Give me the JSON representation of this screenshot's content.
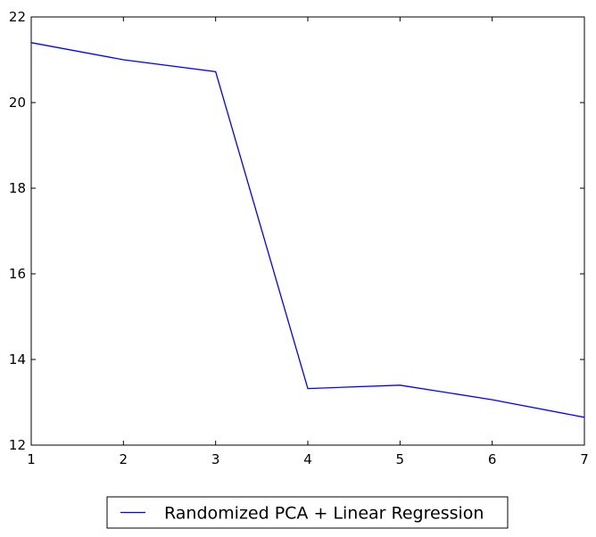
{
  "chart_data": {
    "type": "line",
    "title": "",
    "xlabel": "",
    "ylabel": "",
    "xlim": [
      1,
      7
    ],
    "ylim": [
      12,
      22
    ],
    "x_ticks": [
      1,
      2,
      3,
      4,
      5,
      6,
      7
    ],
    "y_ticks": [
      12,
      14,
      16,
      18,
      20,
      22
    ],
    "grid": false,
    "legend_position": "bottom-center, outside plot",
    "series": [
      {
        "name": "Randomized PCA + Linear Regression",
        "color": "#0000ff",
        "x": [
          1,
          2,
          3,
          4,
          5,
          6,
          7
        ],
        "y": [
          21.4,
          21.0,
          20.72,
          13.32,
          13.4,
          13.06,
          12.65
        ]
      }
    ]
  }
}
